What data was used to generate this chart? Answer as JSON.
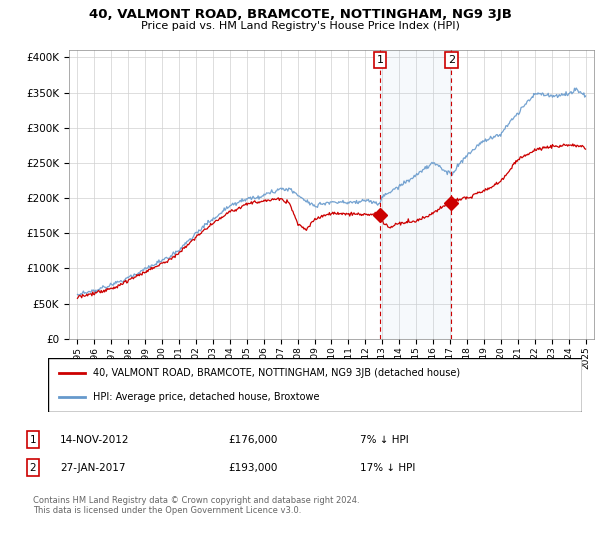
{
  "title": "40, VALMONT ROAD, BRAMCOTE, NOTTINGHAM, NG9 3JB",
  "subtitle": "Price paid vs. HM Land Registry's House Price Index (HPI)",
  "legend_line1": "40, VALMONT ROAD, BRAMCOTE, NOTTINGHAM, NG9 3JB (detached house)",
  "legend_line2": "HPI: Average price, detached house, Broxtowe",
  "annotation1_label": "1",
  "annotation1_date": "14-NOV-2012",
  "annotation1_price": "£176,000",
  "annotation1_hpi": "7% ↓ HPI",
  "annotation2_label": "2",
  "annotation2_date": "27-JAN-2017",
  "annotation2_price": "£193,000",
  "annotation2_hpi": "17% ↓ HPI",
  "footer": "Contains HM Land Registry data © Crown copyright and database right 2024.\nThis data is licensed under the Open Government Licence v3.0.",
  "red_color": "#cc0000",
  "blue_color": "#6699cc",
  "marker1_x": 2012.87,
  "marker2_x": 2017.07,
  "ylim": [
    0,
    410000
  ],
  "xlim_start": 1994.5,
  "xlim_end": 2025.5
}
